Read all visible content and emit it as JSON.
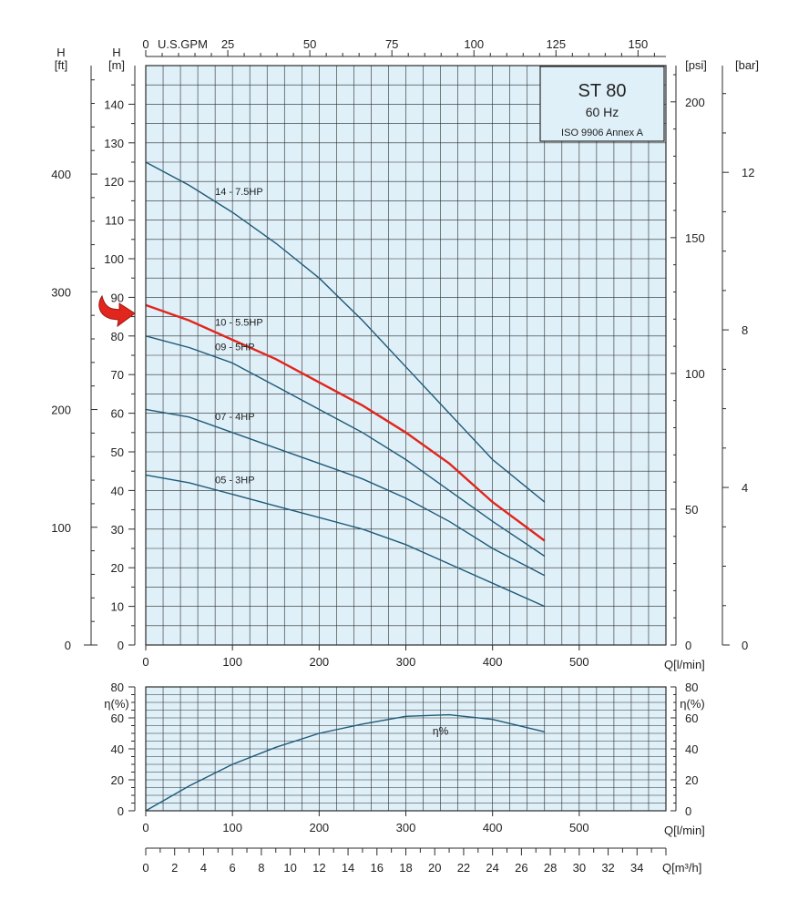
{
  "colors": {
    "plot_bg": "#dff0f8",
    "grid": "#2b2b2b",
    "curve": "#1f5a78",
    "highlight": "#e0261d",
    "text": "#222222",
    "title_box": "#dff0f8"
  },
  "title_box": {
    "model": "ST 80",
    "frequency": "60 Hz",
    "standard": "ISO 9906 Annex A"
  },
  "marker": {
    "name": "selected-curve-arrow",
    "points_to": "10 - 5.5HP"
  },
  "chart_data": [
    {
      "type": "line",
      "name_role": "head-curves",
      "xlabel": "Q[l/min]",
      "ylabel_left_outer": "H",
      "ylabel_left_outer_unit": "[ft]",
      "ylabel_left_inner": "H",
      "ylabel_left_inner_unit": "[m]",
      "ylabel_right_inner": "[psi]",
      "ylabel_right_outer": "[bar]",
      "top_axis_label": "U.S.GPM",
      "xlim": [
        0,
        600
      ],
      "ylim": [
        0,
        150
      ],
      "grid": true,
      "x_ticks": [
        0,
        100,
        200,
        300,
        400,
        500
      ],
      "y_ticks_m": [
        0,
        10,
        20,
        30,
        40,
        50,
        60,
        70,
        80,
        90,
        100,
        110,
        120,
        130,
        140
      ],
      "y_ticks_ft": [
        0,
        100,
        200,
        300,
        400
      ],
      "y_ticks_psi": [
        0,
        50,
        100,
        150,
        200
      ],
      "y_ticks_bar": [
        0,
        4,
        8,
        12
      ],
      "top_ticks_gpm": [
        0,
        25,
        50,
        75,
        100,
        125,
        150
      ],
      "series": [
        {
          "name": "14 - 7.5HP",
          "x": [
            0,
            50,
            100,
            150,
            200,
            250,
            300,
            350,
            400,
            460
          ],
          "y": [
            125,
            119,
            112,
            104,
            95,
            84,
            72,
            60,
            48,
            37
          ],
          "highlight": false
        },
        {
          "name": "10 - 5.5HP",
          "x": [
            0,
            50,
            100,
            150,
            200,
            250,
            300,
            350,
            400,
            460
          ],
          "y": [
            88,
            84,
            79,
            74,
            68,
            62,
            55,
            47,
            37,
            27
          ],
          "highlight": true
        },
        {
          "name": "09 - 5HP",
          "x": [
            0,
            50,
            100,
            150,
            200,
            250,
            300,
            350,
            400,
            460
          ],
          "y": [
            80,
            77,
            73,
            67,
            61,
            55,
            48,
            40,
            32,
            23
          ],
          "highlight": false
        },
        {
          "name": "07 - 4HP",
          "x": [
            0,
            50,
            100,
            150,
            200,
            250,
            300,
            350,
            400,
            460
          ],
          "y": [
            61,
            59,
            55,
            51,
            47,
            43,
            38,
            32,
            25,
            18
          ],
          "highlight": false
        },
        {
          "name": "05 - 3HP",
          "x": [
            0,
            50,
            100,
            150,
            200,
            250,
            300,
            350,
            400,
            460
          ],
          "y": [
            44,
            42,
            39,
            36,
            33,
            30,
            26,
            21,
            16,
            10
          ],
          "highlight": false
        }
      ]
    },
    {
      "type": "line",
      "name_role": "efficiency-curve",
      "xlabel": "Q[l/min]",
      "ylabel_left": "η(%)",
      "ylabel_right": "η(%)",
      "xlim": [
        0,
        600
      ],
      "ylim": [
        0,
        80
      ],
      "grid": true,
      "x_ticks": [
        0,
        100,
        200,
        300,
        400,
        500
      ],
      "y_ticks": [
        0,
        20,
        40,
        60,
        80
      ],
      "series": [
        {
          "name": "η%",
          "x": [
            0,
            50,
            100,
            150,
            200,
            250,
            300,
            350,
            400,
            460
          ],
          "y": [
            0,
            16,
            30,
            41,
            50,
            56,
            61,
            62,
            59,
            51
          ]
        }
      ]
    },
    {
      "type": "axis",
      "name_role": "flow-m3h-axis",
      "xlabel": "Q[m³/h]",
      "xlim": [
        0,
        36
      ],
      "x_ticks": [
        0,
        2,
        4,
        6,
        8,
        10,
        12,
        14,
        16,
        18,
        20,
        22,
        24,
        26,
        28,
        30,
        32,
        34
      ]
    }
  ]
}
